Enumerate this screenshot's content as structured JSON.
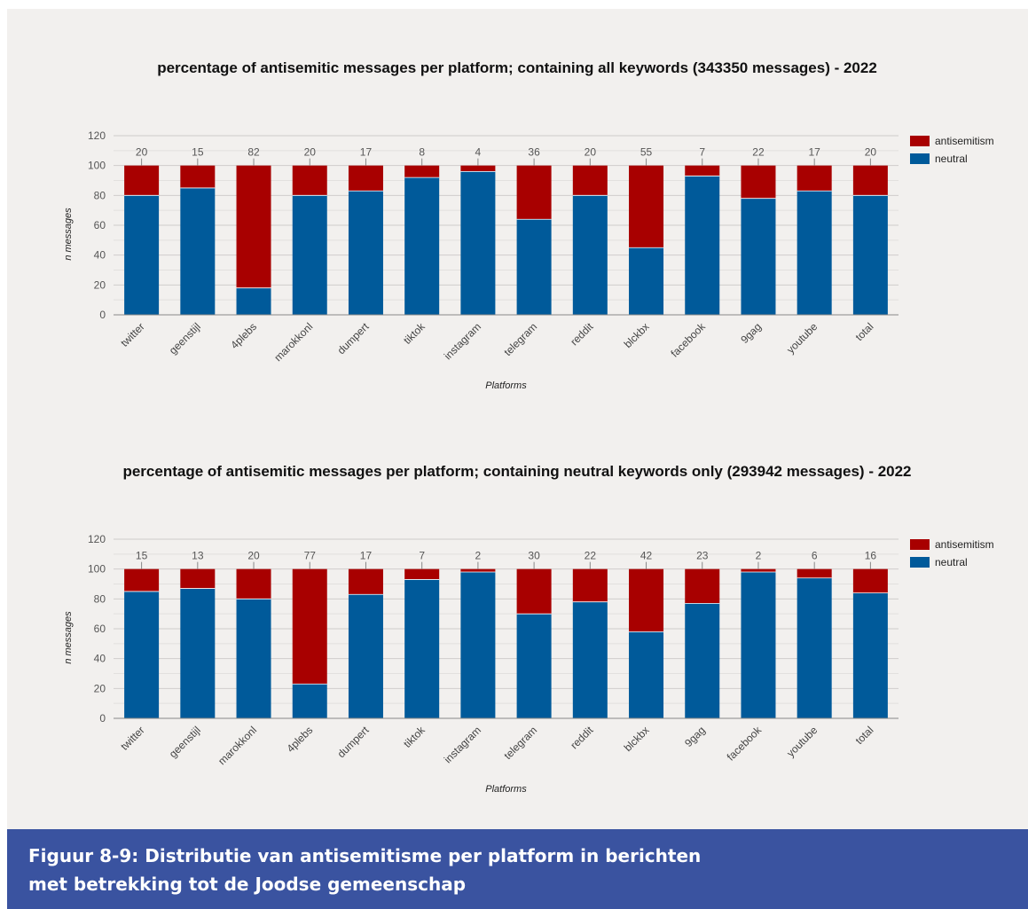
{
  "caption": {
    "line1": "Figuur 8-9: Distributie van antisemitisme per platform in berichten",
    "line2": "met betrekking tot de Joodse gemeenschap"
  },
  "colors": {
    "antisemitism": "#a80000",
    "neutral": "#005a9a",
    "grid": "#d4d2d0",
    "axis": "#888888"
  },
  "chart_data": [
    {
      "type": "bar",
      "stacked": true,
      "title": "percentage of antisemitic messages per platform; containing all keywords (343350 messages) - 2022",
      "xlabel": "Platforms",
      "ylabel": "n messages",
      "ylim": [
        0,
        120
      ],
      "yticks": [
        0,
        20,
        40,
        60,
        80,
        100,
        120
      ],
      "legend_position": "right",
      "categories": [
        "twitter",
        "geenstijl",
        "4plebs",
        "marokkonl",
        "dumpert",
        "tiktok",
        "instagram",
        "telegram",
        "reddit",
        "blckbx",
        "facebook",
        "9gag",
        "youtube",
        "total"
      ],
      "series": [
        {
          "name": "antisemitism",
          "values": [
            20,
            15,
            82,
            20,
            17,
            8,
            4,
            36,
            20,
            55,
            7,
            22,
            17,
            20
          ]
        },
        {
          "name": "neutral",
          "values": [
            80,
            85,
            18,
            80,
            83,
            92,
            96,
            64,
            80,
            45,
            93,
            78,
            83,
            80
          ]
        }
      ]
    },
    {
      "type": "bar",
      "stacked": true,
      "title": "percentage of antisemitic messages per platform; containing neutral keywords only (293942 messages) - 2022",
      "xlabel": "Platforms",
      "ylabel": "n messages",
      "ylim": [
        0,
        120
      ],
      "yticks": [
        0,
        20,
        40,
        60,
        80,
        100,
        120
      ],
      "legend_position": "right",
      "categories": [
        "twitter",
        "geenstijl",
        "marokkonl",
        "4plebs",
        "dumpert",
        "tiktok",
        "instagram",
        "telegram",
        "reddit",
        "blckbx",
        "9gag",
        "facebook",
        "youtube",
        "total"
      ],
      "series": [
        {
          "name": "antisemitism",
          "values": [
            15,
            13,
            20,
            77,
            17,
            7,
            2,
            30,
            22,
            42,
            23,
            2,
            6,
            16
          ]
        },
        {
          "name": "neutral",
          "values": [
            85,
            87,
            80,
            23,
            83,
            93,
            98,
            70,
            78,
            58,
            77,
            98,
            94,
            84
          ]
        }
      ]
    }
  ]
}
